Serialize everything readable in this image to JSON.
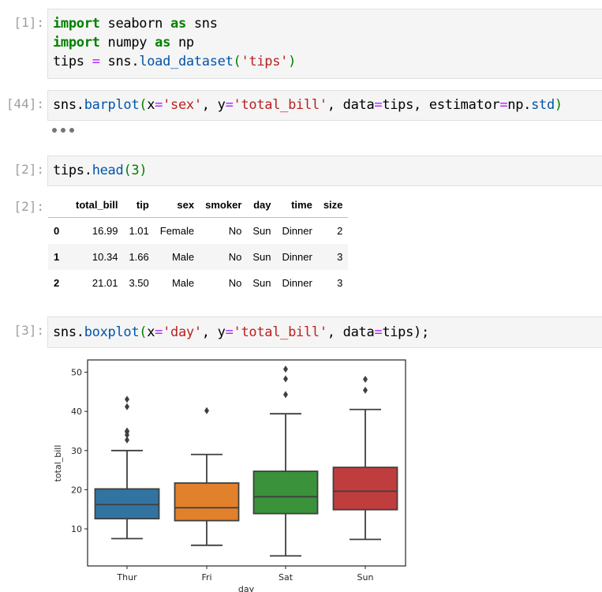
{
  "cells": [
    {
      "prompt": "[1]:",
      "lines": [
        [
          {
            "t": "import",
            "c": "kw"
          },
          {
            "t": " seaborn ",
            "c": ""
          },
          {
            "t": "as",
            "c": "kw"
          },
          {
            "t": " sns",
            "c": ""
          }
        ],
        [
          {
            "t": "import",
            "c": "kw"
          },
          {
            "t": " numpy ",
            "c": ""
          },
          {
            "t": "as",
            "c": "kw"
          },
          {
            "t": " np",
            "c": ""
          }
        ],
        [
          {
            "t": "tips ",
            "c": ""
          },
          {
            "t": "=",
            "c": "op"
          },
          {
            "t": " sns.",
            "c": ""
          },
          {
            "t": "load_dataset",
            "c": "fn"
          },
          {
            "t": "(",
            "c": "paren"
          },
          {
            "t": "'tips'",
            "c": "str"
          },
          {
            "t": ")",
            "c": "paren"
          }
        ]
      ]
    },
    {
      "prompt": "[44]:",
      "lines": [
        [
          {
            "t": "sns.",
            "c": ""
          },
          {
            "t": "barplot",
            "c": "fn"
          },
          {
            "t": "(",
            "c": "paren"
          },
          {
            "t": "x",
            "c": ""
          },
          {
            "t": "=",
            "c": "op"
          },
          {
            "t": "'sex'",
            "c": "str"
          },
          {
            "t": ", y",
            "c": ""
          },
          {
            "t": "=",
            "c": "op"
          },
          {
            "t": "'total_bill'",
            "c": "str"
          },
          {
            "t": ", data",
            "c": ""
          },
          {
            "t": "=",
            "c": "op"
          },
          {
            "t": "tips, estimator",
            "c": ""
          },
          {
            "t": "=",
            "c": "op"
          },
          {
            "t": "np.",
            "c": ""
          },
          {
            "t": "std",
            "c": "fn"
          },
          {
            "t": ")",
            "c": "paren"
          }
        ]
      ],
      "output_collapsed": true,
      "collapsed_icon": "ellipsis-icon"
    },
    {
      "prompt": "[2]:",
      "lines": [
        [
          {
            "t": "tips.",
            "c": ""
          },
          {
            "t": "head",
            "c": "fn"
          },
          {
            "t": "(",
            "c": "paren"
          },
          {
            "t": "3",
            "c": "num"
          },
          {
            "t": ")",
            "c": "paren"
          }
        ]
      ],
      "output_prompt": "[2]:"
    },
    {
      "prompt": "[3]:",
      "lines": [
        [
          {
            "t": "sns.",
            "c": ""
          },
          {
            "t": "boxplot",
            "c": "fn"
          },
          {
            "t": "(",
            "c": "paren"
          },
          {
            "t": "x",
            "c": ""
          },
          {
            "t": "=",
            "c": "op"
          },
          {
            "t": "'day'",
            "c": "str"
          },
          {
            "t": ", y",
            "c": ""
          },
          {
            "t": "=",
            "c": "op"
          },
          {
            "t": "'total_bill'",
            "c": "str"
          },
          {
            "t": ", data",
            "c": ""
          },
          {
            "t": "=",
            "c": "op"
          },
          {
            "t": "tips);",
            "c": ""
          }
        ]
      ]
    }
  ],
  "dataframe": {
    "columns": [
      "",
      "total_bill",
      "tip",
      "sex",
      "smoker",
      "day",
      "time",
      "size"
    ],
    "rows": [
      [
        "0",
        "16.99",
        "1.01",
        "Female",
        "No",
        "Sun",
        "Dinner",
        "2"
      ],
      [
        "1",
        "10.34",
        "1.66",
        "Male",
        "No",
        "Sun",
        "Dinner",
        "3"
      ],
      [
        "2",
        "21.01",
        "3.50",
        "Male",
        "No",
        "Sun",
        "Dinner",
        "3"
      ]
    ]
  },
  "chart_data": {
    "type": "box",
    "title": "",
    "xlabel": "day",
    "ylabel": "total_bill",
    "categories": [
      "Thur",
      "Fri",
      "Sat",
      "Sun"
    ],
    "yticks": [
      10,
      20,
      30,
      40,
      50
    ],
    "ylim": [
      0.8,
      52.5
    ],
    "grid": false,
    "legend": null,
    "colors": [
      "#3274a1",
      "#e1812c",
      "#3a923a",
      "#c03d3e"
    ],
    "series": [
      {
        "name": "Thur",
        "whisker_low": 7.5,
        "q1": 12.6,
        "median": 16.2,
        "q3": 20.2,
        "whisker_high": 30.0,
        "outliers": [
          32.7,
          34.0,
          34.8,
          35.0,
          41.2,
          43.1
        ]
      },
      {
        "name": "Fri",
        "whisker_low": 5.8,
        "q1": 12.1,
        "median": 15.4,
        "q3": 21.7,
        "whisker_high": 29.0,
        "outliers": [
          40.2
        ]
      },
      {
        "name": "Sat",
        "whisker_low": 3.1,
        "q1": 13.9,
        "median": 18.2,
        "q3": 24.7,
        "whisker_high": 39.4,
        "outliers": [
          44.3,
          48.3,
          50.8
        ]
      },
      {
        "name": "Sun",
        "whisker_low": 7.3,
        "q1": 14.9,
        "median": 19.6,
        "q3": 25.7,
        "whisker_high": 40.5,
        "outliers": [
          45.4,
          48.2
        ]
      }
    ]
  }
}
